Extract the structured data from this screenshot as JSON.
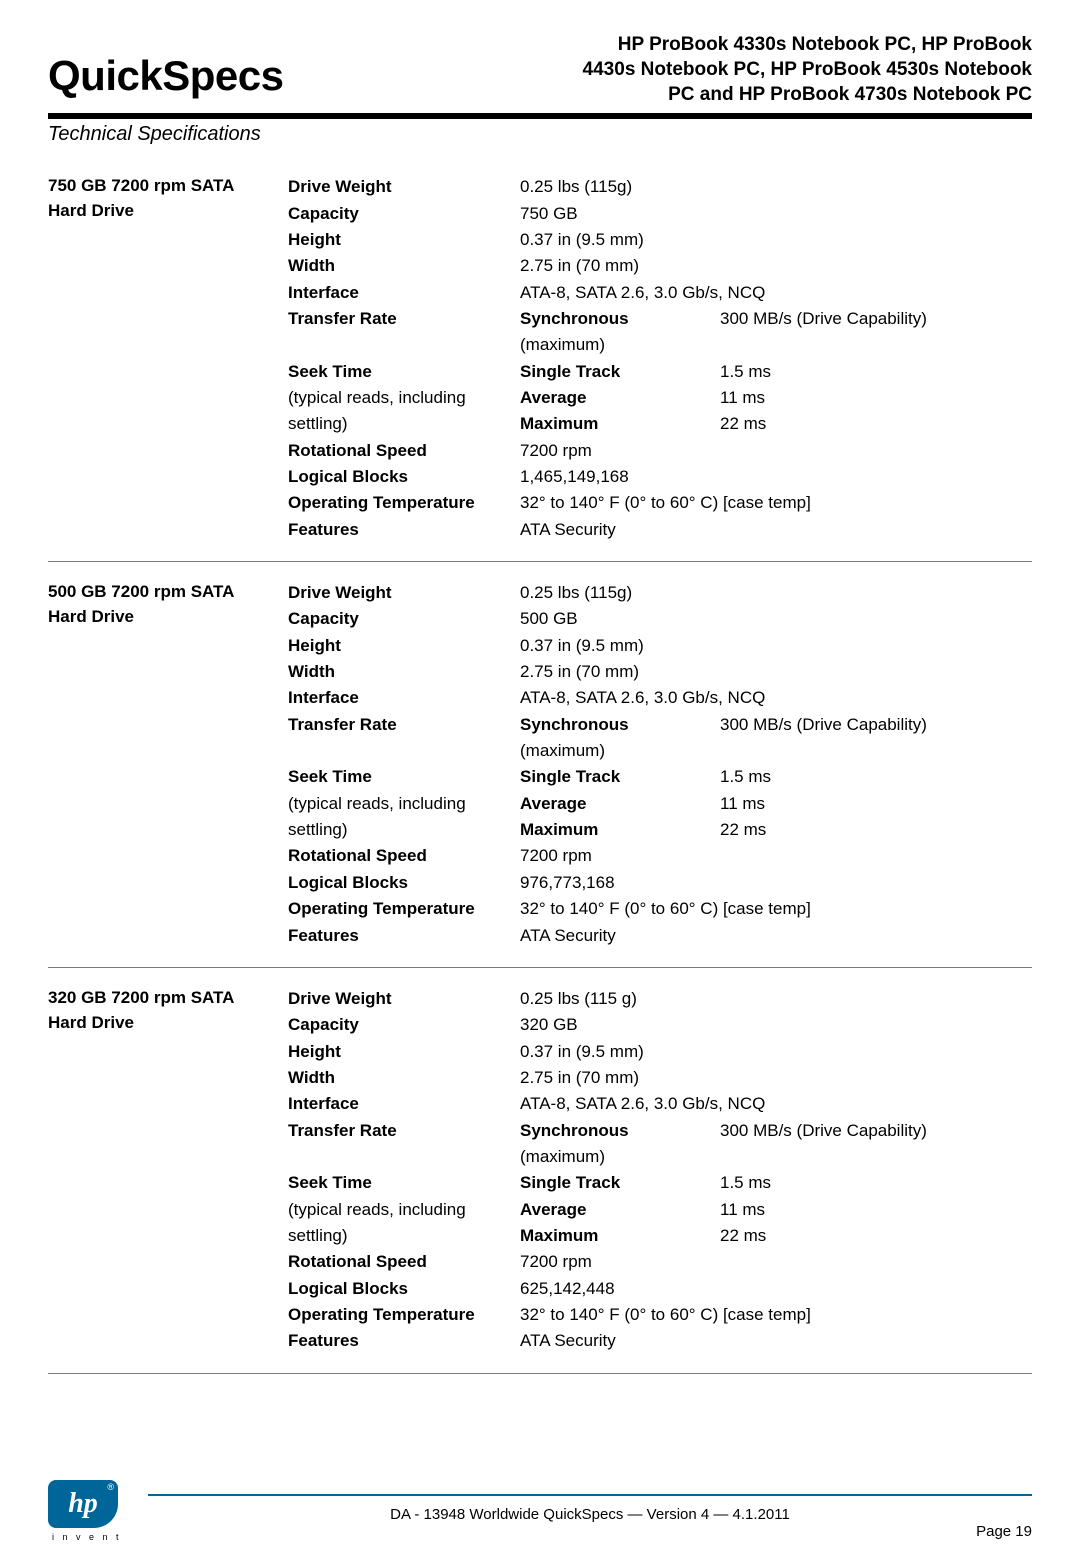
{
  "typography": {
    "body_font": "Arial, Helvetica, sans-serif",
    "body_size_pt": 13,
    "quickspecs_size_pt": 32,
    "header_title_size_pt": 14,
    "text_color": "#000000",
    "accent_color": "#006699",
    "background_color": "#ffffff"
  },
  "header": {
    "quickspecs": "QuickSpecs",
    "title_line1": "HP ProBook 4330s Notebook PC, HP ProBook",
    "title_line2": "4430s Notebook PC, HP ProBook 4530s Notebook",
    "title_line3": "PC and HP ProBook 4730s Notebook PC",
    "subtitle": "Technical Specifications"
  },
  "drives": [
    {
      "name_line1": "750 GB 7200 rpm SATA",
      "name_line2": "Hard Drive",
      "specs": {
        "drive_weight": "0.25 lbs (115g)",
        "capacity": "750 GB",
        "height": "0.37 in (9.5 mm)",
        "width": "2.75 in (70 mm)",
        "interface": "ATA-8, SATA 2.6, 3.0 Gb/s, NCQ",
        "transfer_rate": {
          "sync_label": "Synchronous",
          "sync_sub": "(maximum)",
          "sync_val": "300 MB/s (Drive Capability)"
        },
        "seek_time_label": "Seek Time",
        "seek_sub1": "(typical reads, including",
        "seek_sub2": "settling)",
        "seek": {
          "single_track": "1.5 ms",
          "average": "11 ms",
          "maximum": "22 ms"
        },
        "rotational_speed": "7200 rpm",
        "logical_blocks": "1,465,149,168",
        "operating_temperature": "32° to 140° F (0° to 60° C) [case temp]",
        "features": "ATA Security"
      }
    },
    {
      "name_line1": "500 GB 7200 rpm SATA",
      "name_line2": "Hard Drive",
      "specs": {
        "drive_weight": "0.25 lbs (115g)",
        "capacity": "500 GB",
        "height": "0.37 in (9.5 mm)",
        "width": "2.75 in (70 mm)",
        "interface": "ATA-8, SATA 2.6, 3.0 Gb/s, NCQ",
        "transfer_rate": {
          "sync_label": "Synchronous",
          "sync_sub": "(maximum)",
          "sync_val": "300 MB/s (Drive Capability)"
        },
        "seek_time_label": "Seek Time",
        "seek_sub1": "(typical reads, including",
        "seek_sub2": "settling)",
        "seek": {
          "single_track": "1.5 ms",
          "average": "11 ms",
          "maximum": "22 ms"
        },
        "rotational_speed": "7200 rpm",
        "logical_blocks": "976,773,168",
        "operating_temperature": "32° to 140° F (0° to 60° C) [case temp]",
        "features": "ATA Security"
      }
    },
    {
      "name_line1": "320 GB 7200 rpm SATA",
      "name_line2": "Hard Drive",
      "specs": {
        "drive_weight": "0.25 lbs (115 g)",
        "capacity": "320 GB",
        "height": "0.37 in (9.5 mm)",
        "width": "2.75 in (70 mm)",
        "interface": "ATA-8, SATA 2.6, 3.0 Gb/s, NCQ",
        "transfer_rate": {
          "sync_label": "Synchronous",
          "sync_sub": "(maximum)",
          "sync_val": "300 MB/s (Drive Capability)"
        },
        "seek_time_label": "Seek Time",
        "seek_sub1": "(typical reads, including",
        "seek_sub2": "settling)",
        "seek": {
          "single_track": "1.5 ms",
          "average": "11 ms",
          "maximum": "22 ms"
        },
        "rotational_speed": "7200 rpm",
        "logical_blocks": "625,142,448",
        "operating_temperature": "32° to 140° F (0° to 60° C) [case temp]",
        "features": "ATA Security"
      }
    }
  ],
  "labels": {
    "drive_weight": "Drive Weight",
    "capacity": "Capacity",
    "height": "Height",
    "width": "Width",
    "interface": "Interface",
    "transfer_rate": "Transfer Rate",
    "single_track": "Single Track",
    "average": "Average",
    "maximum": "Maximum",
    "rotational_speed": "Rotational Speed",
    "logical_blocks": "Logical Blocks",
    "operating_temperature": "Operating Temperature",
    "features": "Features"
  },
  "footer": {
    "line": "DA - 13948   Worldwide QuickSpecs — Version 4 — 4.1.2011",
    "page": "Page 19",
    "logo_text": "hp",
    "invent": "i n v e n t"
  }
}
